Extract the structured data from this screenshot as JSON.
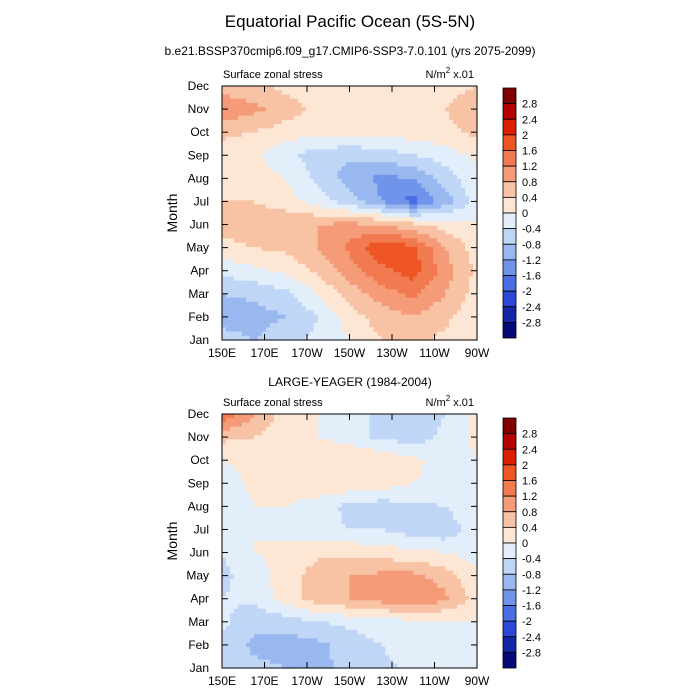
{
  "figure": {
    "title": "Equatorial Pacific Ocean (5S-5N)"
  },
  "colorbar": {
    "labels": [
      "2.8",
      "2.4",
      "2",
      "1.6",
      "1.2",
      "0.8",
      "0.4",
      "0",
      "-0.4",
      "-0.8",
      "-1.2",
      "-1.6",
      "-2",
      "-2.4",
      "-2.8"
    ],
    "colors": [
      "#800000",
      "#b40000",
      "#dc1e00",
      "#ee5525",
      "#f27a50",
      "#f59b78",
      "#f8c2a4",
      "#fde6d4",
      "#e3eefb",
      "#bfd6f7",
      "#99b8f0",
      "#7094ea",
      "#4a6fe4",
      "#2c48d4",
      "#1426a8",
      "#050a78"
    ]
  },
  "chart_data": [
    {
      "type": "heatmap",
      "title": "b.e21.BSSP370cmip6.f09_g17.CMIP6-SSP3-7.0.101 (yrs 2075-2099)",
      "left_label": "Surface zonal stress",
      "units_label": "N/m",
      "units_exp": "2",
      "units_scale": " x.01",
      "ylabel": "Month",
      "xlabel": "",
      "x_ticks": [
        "150E",
        "170E",
        "170W",
        "150W",
        "130W",
        "110W",
        "90W"
      ],
      "x_range": [
        150,
        270
      ],
      "y_ticks": [
        "Jan",
        "Feb",
        "Mar",
        "Apr",
        "May",
        "Jun",
        "Jul",
        "Aug",
        "Sep",
        "Oct",
        "Nov",
        "Dec"
      ],
      "x": [
        150,
        165,
        180,
        195,
        210,
        225,
        240,
        255,
        270
      ],
      "y": [
        "Jan",
        "Feb",
        "Mar",
        "Apr",
        "May",
        "Jun",
        "Jul",
        "Aug",
        "Sep",
        "Oct",
        "Nov",
        "Dec"
      ],
      "z": [
        [
          -0.6,
          -0.8,
          -0.5,
          -0.3,
          0.0,
          0.4,
          0.5,
          0.3,
          0.0
        ],
        [
          -1.0,
          -1.0,
          -0.8,
          -0.4,
          0.2,
          0.6,
          0.8,
          0.5,
          0.1
        ],
        [
          -0.8,
          -0.7,
          -0.5,
          0.0,
          0.6,
          1.0,
          1.3,
          0.8,
          0.2
        ],
        [
          -0.3,
          -0.1,
          0.1,
          0.5,
          1.0,
          1.5,
          1.8,
          1.0,
          0.3
        ],
        [
          0.3,
          0.4,
          0.5,
          0.8,
          1.3,
          1.9,
          1.7,
          0.8,
          0.2
        ],
        [
          0.5,
          0.6,
          0.7,
          0.8,
          0.9,
          0.8,
          0.5,
          0.2,
          0.0
        ],
        [
          0.4,
          0.4,
          0.2,
          -0.2,
          -0.6,
          -1.2,
          -1.8,
          -1.0,
          -0.2
        ],
        [
          0.3,
          0.2,
          0.0,
          -0.5,
          -1.0,
          -1.3,
          -1.2,
          -0.6,
          -0.1
        ],
        [
          0.2,
          0.1,
          -0.3,
          -0.6,
          -0.7,
          -0.6,
          -0.4,
          -0.2,
          0.1
        ],
        [
          0.5,
          0.4,
          0.2,
          0.1,
          0.1,
          0.1,
          0.2,
          0.3,
          0.5
        ],
        [
          1.1,
          0.9,
          0.6,
          0.3,
          0.2,
          0.2,
          0.3,
          0.4,
          0.6
        ],
        [
          0.6,
          0.5,
          0.3,
          0.1,
          0.1,
          0.1,
          0.2,
          0.3,
          0.4
        ]
      ]
    },
    {
      "type": "heatmap",
      "title": "LARGE-YEAGER (1984-2004)",
      "left_label": "Surface zonal stress",
      "units_label": "N/m",
      "units_exp": "2",
      "units_scale": " x.01",
      "ylabel": "Month",
      "xlabel": "",
      "x_ticks": [
        "150E",
        "170E",
        "170W",
        "150W",
        "130W",
        "110W",
        "90W"
      ],
      "x_range": [
        150,
        270
      ],
      "y_ticks": [
        "Jan",
        "Feb",
        "Mar",
        "Apr",
        "May",
        "Jun",
        "Jul",
        "Aug",
        "Sep",
        "Oct",
        "Nov",
        "Dec"
      ],
      "x": [
        150,
        165,
        180,
        195,
        210,
        225,
        240,
        255,
        270
      ],
      "y": [
        "Jan",
        "Feb",
        "Mar",
        "Apr",
        "May",
        "Jun",
        "Jul",
        "Aug",
        "Sep",
        "Oct",
        "Nov",
        "Dec"
      ],
      "z": [
        [
          -0.5,
          -0.7,
          -0.8,
          -0.9,
          -0.7,
          -0.5,
          -0.3,
          -0.2,
          0.0
        ],
        [
          -0.5,
          -0.9,
          -1.0,
          -0.9,
          -0.6,
          -0.4,
          -0.2,
          -0.2,
          0.0
        ],
        [
          -0.3,
          -0.7,
          -0.6,
          -0.4,
          -0.3,
          -0.2,
          -0.1,
          -0.1,
          0.0
        ],
        [
          -0.4,
          -0.3,
          0.2,
          0.6,
          0.8,
          1.0,
          1.2,
          0.9,
          0.2
        ],
        [
          -0.5,
          -0.2,
          0.2,
          0.6,
          0.8,
          0.9,
          0.9,
          0.6,
          0.1
        ],
        [
          -0.4,
          0.0,
          0.1,
          0.3,
          0.3,
          0.2,
          0.1,
          0.0,
          -0.2
        ],
        [
          -0.3,
          0.0,
          -0.1,
          -0.3,
          -0.4,
          -0.4,
          -0.6,
          -0.7,
          -0.1
        ],
        [
          -0.4,
          0.0,
          0.0,
          -0.2,
          -0.5,
          -0.6,
          -0.5,
          -0.4,
          0.0
        ],
        [
          -0.3,
          0.1,
          0.2,
          0.3,
          0.3,
          0.2,
          0.0,
          -0.1,
          0.0
        ],
        [
          0.0,
          0.2,
          0.3,
          0.4,
          0.4,
          0.3,
          0.1,
          -0.2,
          0.0
        ],
        [
          0.5,
          0.4,
          0.2,
          0.0,
          -0.2,
          -0.5,
          -0.6,
          -0.3,
          0.1
        ],
        [
          1.6,
          0.8,
          0.2,
          0.0,
          -0.2,
          -0.5,
          -0.8,
          -0.4,
          0.1
        ]
      ]
    }
  ]
}
